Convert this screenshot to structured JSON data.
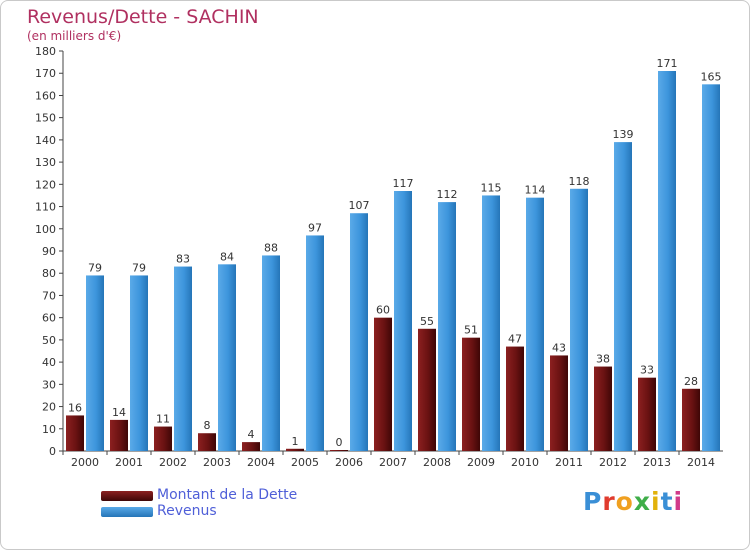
{
  "title": "Revenus/Dette - SACHIN",
  "subtitle": "(en milliers d'€)",
  "logo": "Proxiti",
  "colors": {
    "dette": "#7a1a1a",
    "revenus": "#3d95dc",
    "title": "#b03060",
    "legend_text": "#4f5fd8"
  },
  "chart_data": {
    "type": "bar",
    "title": "Revenus/Dette - SACHIN",
    "ylabel": "(en milliers d'€)",
    "xlabel": "",
    "ylim": [
      0,
      180
    ],
    "ytick_step": 10,
    "grid": false,
    "legend_position": "bottom-left",
    "categories": [
      "2000",
      "2001",
      "2002",
      "2003",
      "2004",
      "2005",
      "2006",
      "2007",
      "2008",
      "2009",
      "2010",
      "2011",
      "2012",
      "2013",
      "2014"
    ],
    "series": [
      {
        "name": "Montant de la Dette",
        "values": [
          16,
          14,
          11,
          8,
          4,
          1,
          0,
          60,
          55,
          51,
          47,
          43,
          38,
          33,
          28
        ]
      },
      {
        "name": "Revenus",
        "values": [
          79,
          79,
          83,
          84,
          88,
          97,
          107,
          117,
          112,
          115,
          114,
          118,
          139,
          171,
          165
        ]
      }
    ]
  }
}
